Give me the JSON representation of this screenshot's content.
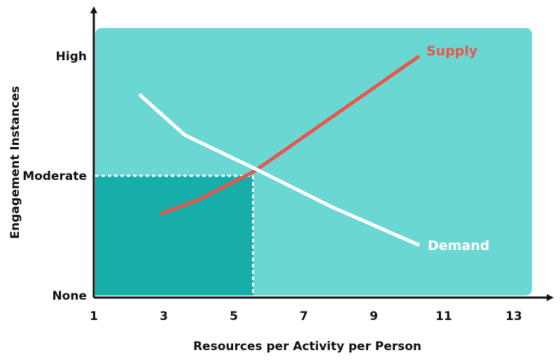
{
  "chart_data": {
    "type": "line",
    "title": "",
    "xlabel": "Resources per Activity per Person",
    "ylabel": "Engagement Instances",
    "x_ticks": [
      1,
      3,
      5,
      7,
      9,
      11,
      13
    ],
    "xlim": [
      1,
      13
    ],
    "y_ticks": [
      {
        "value": 0,
        "label": "None"
      },
      {
        "value": 0.5,
        "label": "Moderate"
      },
      {
        "value": 1,
        "label": "High"
      }
    ],
    "ylim": [
      0,
      1
    ],
    "grid": false,
    "series": [
      {
        "name": "Supply",
        "color": "#e8554a",
        "x": [
          2.9,
          4.0,
          5.6,
          10.3
        ],
        "y": [
          0.34,
          0.4,
          0.52,
          1.0
        ]
      },
      {
        "name": "Demand",
        "color": "#ffffff",
        "x": [
          2.3,
          3.6,
          5.6,
          7.8,
          10.3
        ],
        "y": [
          0.84,
          0.67,
          0.53,
          0.37,
          0.21
        ]
      }
    ],
    "equilibrium": {
      "x": 5.55,
      "y": 0.5
    },
    "colors": {
      "plot_background": "#6ad7d3",
      "equilibrium_region": "#17ada9",
      "axis": "#111111"
    }
  }
}
